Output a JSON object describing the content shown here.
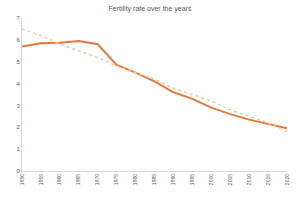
{
  "chart_data": {
    "type": "line",
    "title": "Fertility rate over the years",
    "x": [
      1950,
      1955,
      1960,
      1965,
      1970,
      1975,
      1980,
      1985,
      1990,
      1995,
      2000,
      2005,
      2010,
      2015,
      2020
    ],
    "series": [
      {
        "color": "#e07b39",
        "line_style": "solid",
        "values": [
          5.7,
          5.85,
          5.87,
          5.95,
          5.8,
          4.85,
          4.5,
          4.1,
          3.6,
          3.3,
          2.9,
          2.6,
          2.35,
          2.15,
          1.95
        ]
      },
      {
        "color": "#f2c4a2",
        "line_style": "dotted",
        "values": [
          6.5,
          6.2,
          5.8,
          5.5,
          5.2,
          4.8,
          4.5,
          4.2,
          3.8,
          3.5,
          3.2,
          2.8,
          2.5,
          2.2,
          1.8
        ]
      }
    ],
    "xlim": [
      1950,
      2020
    ],
    "xticks": [
      1950,
      1955,
      1960,
      1965,
      1970,
      1975,
      1980,
      1985,
      1990,
      1995,
      2000,
      2005,
      2010,
      2015,
      2020
    ],
    "ylim": [
      0,
      7
    ],
    "yticks": [
      0,
      1,
      2,
      3,
      4,
      5,
      6,
      7
    ],
    "grid": false
  }
}
